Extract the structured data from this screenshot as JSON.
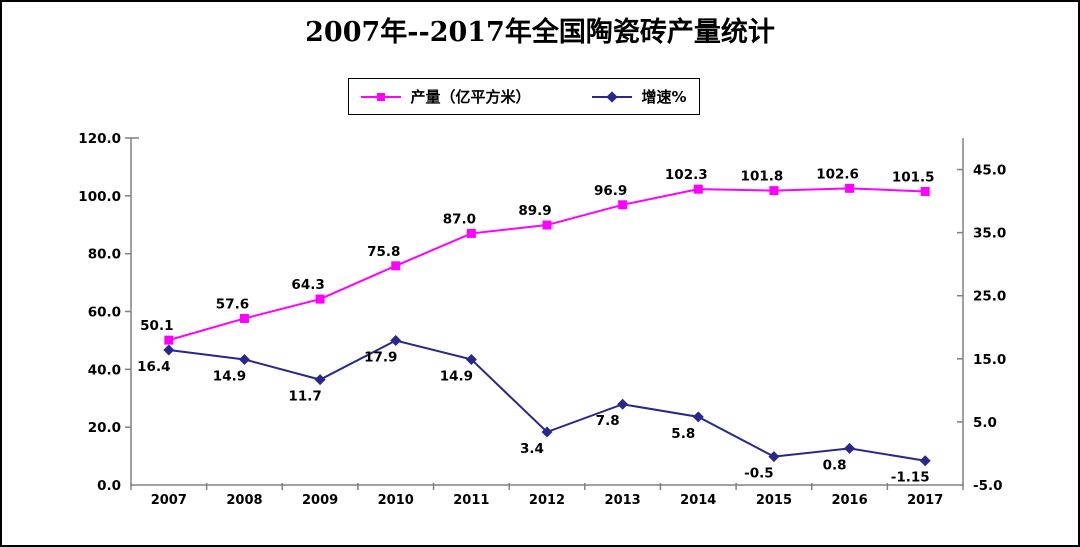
{
  "title": "2007年--2017年全国陶瓷砖产量统计",
  "legend": {
    "production_label": "产量（亿平方米）",
    "growth_label": "增速%"
  },
  "colors": {
    "production_line": "#FF00FF",
    "growth_line": "#28288C",
    "axis_line": "#808080",
    "text": "#000000",
    "border": "#000000",
    "background": "#FFFFFF"
  },
  "chart_data": {
    "type": "line",
    "title": "2007年--2017年全国陶瓷砖产量统计",
    "categories": [
      "2007",
      "2008",
      "2009",
      "2010",
      "2011",
      "2012",
      "2013",
      "2014",
      "2015",
      "2016",
      "2017"
    ],
    "series": [
      {
        "name": "产量（亿平方米）",
        "axis": "left",
        "marker": "square",
        "color": "#FF00FF",
        "values": [
          50.1,
          57.6,
          64.3,
          75.8,
          87.0,
          89.9,
          96.9,
          102.3,
          101.8,
          102.6,
          101.5
        ],
        "labels": [
          "50.1",
          "57.6",
          "64.3",
          "75.8",
          "87.0",
          "89.9",
          "96.9",
          "102.3",
          "101.8",
          "102.6",
          "101.5"
        ]
      },
      {
        "name": "增速%",
        "axis": "right",
        "marker": "diamond",
        "color": "#28288C",
        "values": [
          16.4,
          14.9,
          11.7,
          17.9,
          14.9,
          3.4,
          7.8,
          5.8,
          -0.5,
          0.8,
          -1.15
        ],
        "labels": [
          "16.4",
          "14.9",
          "11.7",
          "17.9",
          "14.9",
          "3.4",
          "7.8",
          "5.8",
          "-0.5",
          "0.8",
          "-1.15"
        ]
      }
    ],
    "left_axis": {
      "min": 0,
      "max": 120,
      "ticks": [
        0,
        20,
        40,
        60,
        80,
        100,
        120
      ],
      "tick_labels": [
        "0.0",
        "20.0",
        "40.0",
        "60.0",
        "80.0",
        "100.0",
        "120.0"
      ]
    },
    "right_axis": {
      "min": -5,
      "max": 50,
      "ticks": [
        -5,
        5,
        15,
        25,
        35,
        45
      ],
      "tick_labels": [
        "-5.0",
        "5.0",
        "15.0",
        "25.0",
        "35.0",
        "45.0"
      ]
    },
    "grid": false,
    "legend_position": "top",
    "data_labels": true
  }
}
